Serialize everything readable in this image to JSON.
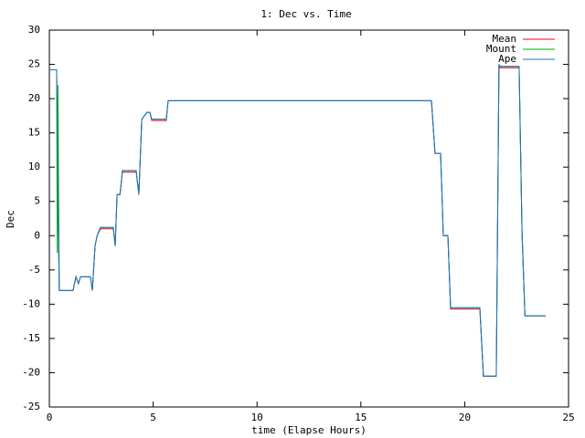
{
  "chart_data": {
    "type": "line",
    "title": "1: Dec vs. Time",
    "x_label": "time (Elapse Hours)",
    "y_label": "Dec",
    "x": [
      0,
      0.35,
      0.38,
      0.41,
      0.48,
      1.14,
      1.28,
      1.4,
      1.5,
      1.98,
      2.07,
      2.2,
      2.3,
      2.46,
      3.08,
      3.17,
      3.26,
      3.4,
      3.52,
      4.18,
      4.31,
      4.45,
      4.7,
      4.84,
      4.93,
      5.63,
      5.72,
      18.4,
      18.57,
      18.84,
      18.97,
      19.19,
      19.32,
      20.73,
      20.9,
      21.52,
      21.65,
      21.7,
      22.62,
      22.76,
      22.9,
      23.9
    ],
    "series": [
      {
        "name": "Mean",
        "color": "#ff0000",
        "values": [
          24.2,
          24.2,
          17,
          5,
          -8,
          -8,
          -6,
          -7,
          -6,
          -6,
          -8,
          -1.5,
          0,
          1.0,
          1.0,
          -1.5,
          6,
          6,
          9.3,
          9.3,
          6,
          17,
          18,
          18,
          16.8,
          16.8,
          19.7,
          19.7,
          12,
          12,
          0,
          0,
          -10.7,
          -10.7,
          -20.5,
          -20.5,
          25,
          24.5,
          24.5,
          0.5,
          -11.7,
          -11.7
        ]
      },
      {
        "name": "Mount",
        "color": "#00b000",
        "values": [
          24.2,
          24.2,
          -2.5,
          22,
          -8,
          -8,
          -6,
          -7,
          -6,
          -6,
          -8,
          -1.5,
          0,
          1.2,
          1.2,
          -1.5,
          6,
          6,
          9.5,
          9.5,
          6,
          17,
          18,
          18,
          17,
          17,
          19.7,
          19.7,
          12,
          12,
          0,
          0,
          -10.5,
          -10.5,
          -20.5,
          -20.5,
          25,
          24.7,
          24.7,
          0.5,
          -11.7,
          -11.7
        ]
      },
      {
        "name": "Ape",
        "color": "#1a6fd0",
        "values": [
          24.2,
          24.2,
          17,
          5,
          -8,
          -8,
          -6,
          -7,
          -6,
          -6,
          -8,
          -1.5,
          0,
          1.2,
          1.2,
          -1.5,
          6,
          6,
          9.5,
          9.5,
          6,
          17,
          18,
          18,
          17,
          17,
          19.7,
          19.7,
          12,
          12,
          0,
          0,
          -10.5,
          -10.5,
          -20.5,
          -20.5,
          25,
          24.7,
          24.7,
          0.5,
          -11.7,
          -11.7
        ]
      }
    ],
    "xlim": [
      0,
      25
    ],
    "xticks": [
      0,
      5,
      10,
      15,
      20,
      25
    ],
    "ylim": [
      -25,
      30
    ],
    "yticks": [
      -25,
      -20,
      -15,
      -10,
      -5,
      0,
      5,
      10,
      15,
      20,
      25,
      30
    ],
    "grid": false,
    "legend": "top-right"
  }
}
